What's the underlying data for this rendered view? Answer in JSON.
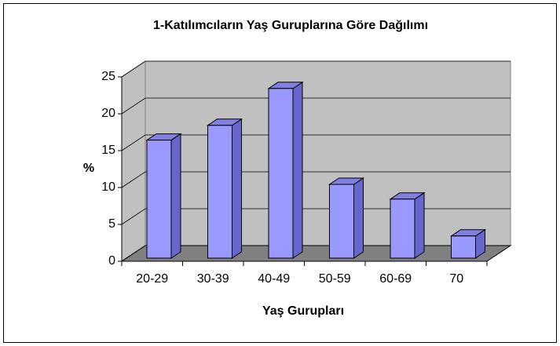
{
  "chart_data": {
    "type": "bar3d",
    "title": "1-Katılımcıların Yaş Guruplarına Göre Dağılımı",
    "x_label": "Yaş Gurupları",
    "y_label": "%",
    "categories": [
      "20-29",
      "30-39",
      "40-49",
      "50-59",
      "60-69",
      "70"
    ],
    "values": [
      16,
      18,
      23,
      10,
      8,
      3
    ],
    "color": "#9999ff",
    "ylim": [
      0,
      25
    ],
    "yticks": [
      0,
      5,
      10,
      15,
      20,
      25
    ],
    "grid": true
  }
}
